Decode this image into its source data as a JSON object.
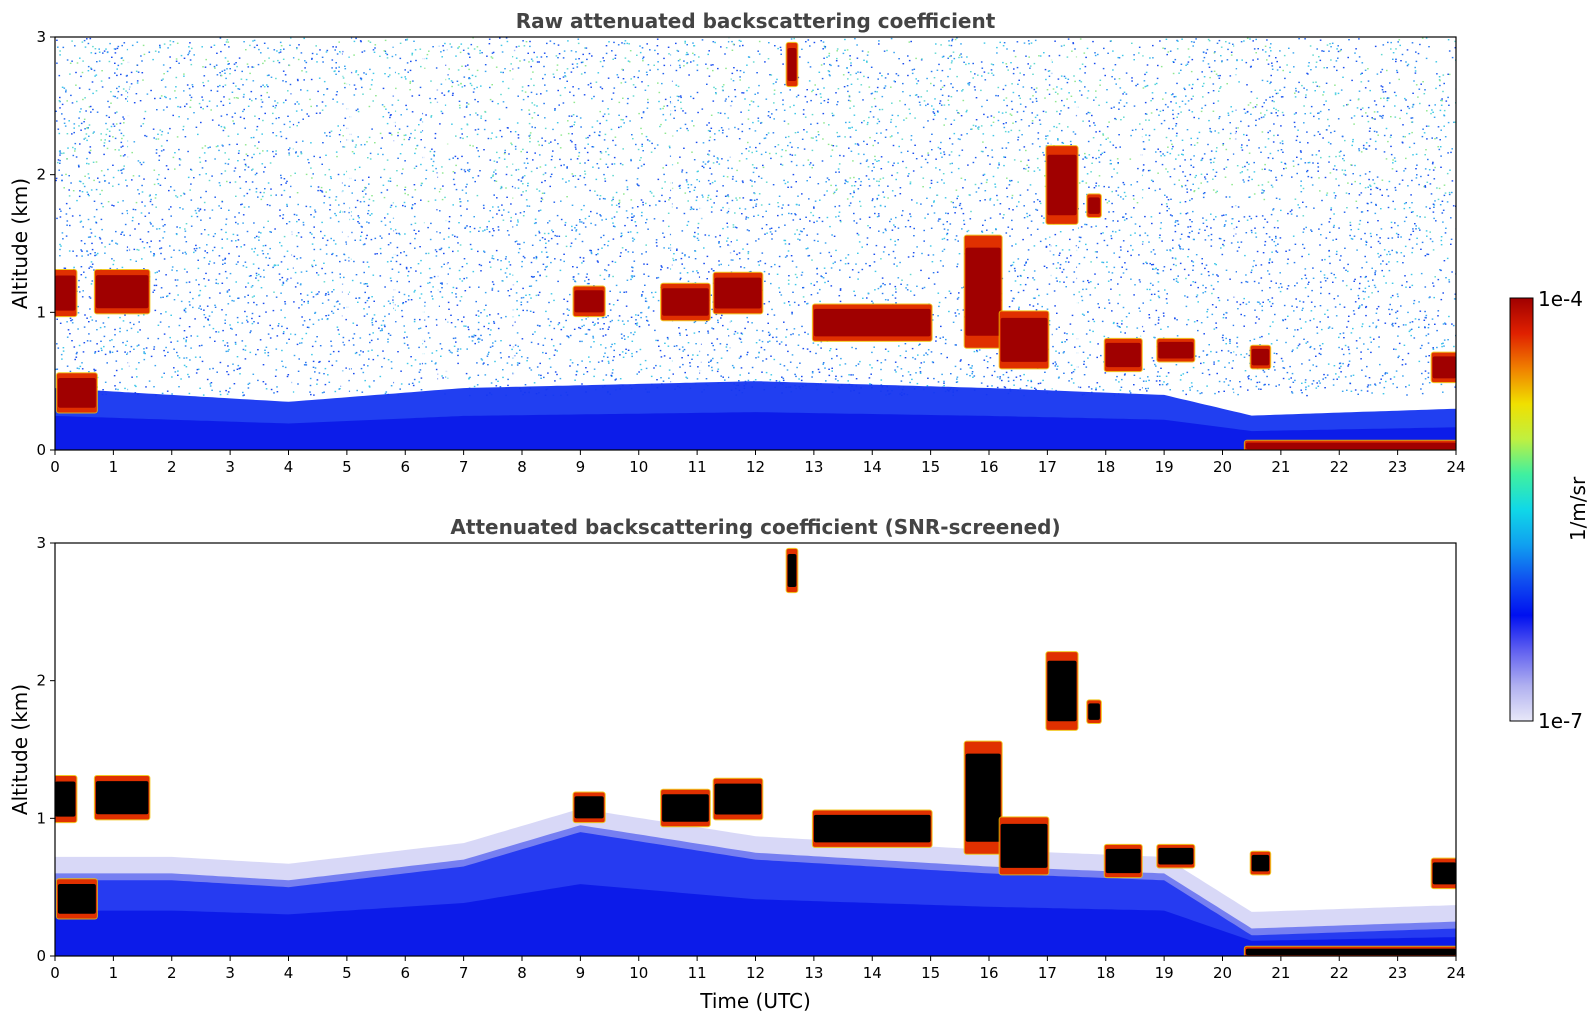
{
  "chart_data": [
    {
      "type": "heatmap",
      "title": "Raw attenuated backscattering coefficient",
      "xlabel": "",
      "ylabel": "Altitude (km)",
      "xlim": [
        0,
        24
      ],
      "ylim": [
        0,
        3
      ],
      "x_ticks": [
        "0",
        "1",
        "2",
        "3",
        "4",
        "5",
        "6",
        "7",
        "8",
        "9",
        "10",
        "11",
        "12",
        "13",
        "14",
        "15",
        "16",
        "17",
        "18",
        "19",
        "20",
        "21",
        "22",
        "23",
        "24"
      ],
      "y_ticks": [
        "0",
        "1",
        "2",
        "3"
      ],
      "background_noise": "dense noisy returns at all altitudes; blue near surface, cyan/green aloft",
      "aerosol_layer": [
        {
          "x": 0,
          "top": 0.45
        },
        {
          "x": 2,
          "top": 0.4
        },
        {
          "x": 4,
          "top": 0.35
        },
        {
          "x": 7,
          "top": 0.45
        },
        {
          "x": 12,
          "top": 0.5
        },
        {
          "x": 16,
          "top": 0.45
        },
        {
          "x": 19,
          "top": 0.4
        },
        {
          "x": 20.5,
          "top": 0.25
        },
        {
          "x": 24,
          "top": 0.3
        }
      ],
      "cloud_features": [
        {
          "t0": 0.0,
          "t1": 0.35,
          "base": 0.98,
          "top": 1.3,
          "value": "1e-4"
        },
        {
          "t0": 0.05,
          "t1": 0.7,
          "base": 0.28,
          "top": 0.55,
          "value": "1e-4"
        },
        {
          "t0": 0.7,
          "t1": 1.6,
          "base": 1.0,
          "top": 1.3,
          "value": "1e-4"
        },
        {
          "t0": 8.9,
          "t1": 9.4,
          "base": 0.98,
          "top": 1.18,
          "value": "1e-4"
        },
        {
          "t0": 10.4,
          "t1": 11.2,
          "base": 0.95,
          "top": 1.2,
          "value": "1e-4"
        },
        {
          "t0": 11.3,
          "t1": 12.1,
          "base": 1.0,
          "top": 1.28,
          "value": "1e-4"
        },
        {
          "t0": 12.55,
          "t1": 12.7,
          "base": 2.65,
          "top": 2.95,
          "value": "1e-4"
        },
        {
          "t0": 13.0,
          "t1": 15.0,
          "base": 0.8,
          "top": 1.05,
          "value": "1e-4"
        },
        {
          "t0": 15.6,
          "t1": 16.2,
          "base": 0.75,
          "top": 1.55,
          "value": "1e-4"
        },
        {
          "t0": 16.2,
          "t1": 17.0,
          "base": 0.6,
          "top": 1.0,
          "value": "1e-4"
        },
        {
          "t0": 17.0,
          "t1": 17.5,
          "base": 1.65,
          "top": 2.2,
          "value": "1e-4"
        },
        {
          "t0": 17.7,
          "t1": 17.9,
          "base": 1.7,
          "top": 1.85,
          "value": "1e-4"
        },
        {
          "t0": 18.0,
          "t1": 18.6,
          "base": 0.58,
          "top": 0.8,
          "value": "1e-4"
        },
        {
          "t0": 18.9,
          "t1": 19.5,
          "base": 0.65,
          "top": 0.8,
          "value": "1e-4"
        },
        {
          "t0": 20.5,
          "t1": 20.8,
          "base": 0.6,
          "top": 0.75,
          "value": "1e-4"
        },
        {
          "t0": 23.6,
          "t1": 24.0,
          "base": 0.5,
          "top": 0.7,
          "value": "1e-4"
        },
        {
          "t0": 20.4,
          "t1": 24.0,
          "base": 0.0,
          "top": 0.06,
          "value": "1e-4"
        }
      ]
    },
    {
      "type": "heatmap",
      "title": "Attenuated backscattering coefficient (SNR-screened)",
      "xlabel": "Time (UTC)",
      "ylabel": "Altitude (km)",
      "xlim": [
        0,
        24
      ],
      "ylim": [
        0,
        3
      ],
      "x_ticks": [
        "0",
        "1",
        "2",
        "3",
        "4",
        "5",
        "6",
        "7",
        "8",
        "9",
        "10",
        "11",
        "12",
        "13",
        "14",
        "15",
        "16",
        "17",
        "18",
        "19",
        "20",
        "21",
        "22",
        "23",
        "24"
      ],
      "y_ticks": [
        "0",
        "1",
        "2",
        "3"
      ],
      "background_noise": "screened: white above the aerosol layer",
      "aerosol_layer": [
        {
          "x": 0,
          "top": 0.6
        },
        {
          "x": 2,
          "top": 0.6
        },
        {
          "x": 4,
          "top": 0.55
        },
        {
          "x": 7,
          "top": 0.7
        },
        {
          "x": 9,
          "top": 0.95
        },
        {
          "x": 12,
          "top": 0.75
        },
        {
          "x": 16,
          "top": 0.65
        },
        {
          "x": 19,
          "top": 0.6
        },
        {
          "x": 20.5,
          "top": 0.2
        },
        {
          "x": 24,
          "top": 0.25
        }
      ],
      "cloud_features": [
        {
          "t0": 0.0,
          "t1": 0.35,
          "base": 0.98,
          "top": 1.3,
          "value": "saturated"
        },
        {
          "t0": 0.05,
          "t1": 0.7,
          "base": 0.28,
          "top": 0.55,
          "value": "saturated"
        },
        {
          "t0": 0.7,
          "t1": 1.6,
          "base": 1.0,
          "top": 1.3,
          "value": "saturated"
        },
        {
          "t0": 8.9,
          "t1": 9.4,
          "base": 0.98,
          "top": 1.18,
          "value": "saturated"
        },
        {
          "t0": 10.4,
          "t1": 11.2,
          "base": 0.95,
          "top": 1.2,
          "value": "saturated"
        },
        {
          "t0": 11.3,
          "t1": 12.1,
          "base": 1.0,
          "top": 1.28,
          "value": "saturated"
        },
        {
          "t0": 12.55,
          "t1": 12.7,
          "base": 2.65,
          "top": 2.95,
          "value": "saturated"
        },
        {
          "t0": 13.0,
          "t1": 15.0,
          "base": 0.8,
          "top": 1.05,
          "value": "saturated"
        },
        {
          "t0": 15.6,
          "t1": 16.2,
          "base": 0.75,
          "top": 1.55,
          "value": "saturated"
        },
        {
          "t0": 16.2,
          "t1": 17.0,
          "base": 0.6,
          "top": 1.0,
          "value": "saturated"
        },
        {
          "t0": 17.0,
          "t1": 17.5,
          "base": 1.65,
          "top": 2.2,
          "value": "saturated"
        },
        {
          "t0": 17.7,
          "t1": 17.9,
          "base": 1.7,
          "top": 1.85,
          "value": "saturated"
        },
        {
          "t0": 18.0,
          "t1": 18.6,
          "base": 0.58,
          "top": 0.8,
          "value": "saturated"
        },
        {
          "t0": 18.9,
          "t1": 19.5,
          "base": 0.65,
          "top": 0.8,
          "value": "saturated"
        },
        {
          "t0": 20.5,
          "t1": 20.8,
          "base": 0.6,
          "top": 0.75,
          "value": "saturated"
        },
        {
          "t0": 23.6,
          "t1": 24.0,
          "base": 0.5,
          "top": 0.7,
          "value": "saturated"
        },
        {
          "t0": 20.4,
          "t1": 24.0,
          "base": 0.0,
          "top": 0.06,
          "value": "saturated"
        }
      ]
    }
  ],
  "colorbar": {
    "label": "1/m/sr",
    "max_label": "1e-4",
    "min_label": "1e-7",
    "colors": [
      "#e8e8f8",
      "#b0b0f0",
      "#6060f0",
      "#0010f0",
      "#1050f0",
      "#10a0f0",
      "#10d8e8",
      "#40f0a0",
      "#c0f040",
      "#f0e000",
      "#f08000",
      "#e02000",
      "#a00000"
    ]
  }
}
